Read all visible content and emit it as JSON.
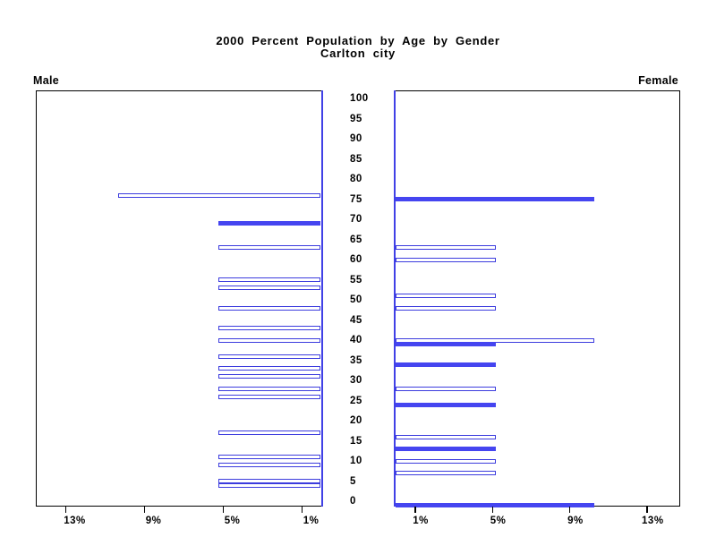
{
  "chart_data": {
    "type": "bar",
    "variant": "population-pyramid",
    "orientation": "horizontal",
    "title": "2000 Percent Population by Age by Gender",
    "subtitle": "Carlton city",
    "left_panel_label": "Male",
    "right_panel_label": "Female",
    "age_axis": {
      "range": [
        0,
        100
      ],
      "tick_step": 5,
      "ticks": [
        100,
        95,
        90,
        85,
        80,
        75,
        70,
        65,
        60,
        55,
        50,
        45,
        40,
        35,
        30,
        25,
        20,
        15,
        10,
        5,
        0
      ],
      "position": "center"
    },
    "percent_axis": {
      "max": 14.8,
      "ticks": [
        1,
        5,
        9,
        13
      ],
      "tick_labels": [
        "1%",
        "5%",
        "9%",
        "13%"
      ],
      "grid": false
    },
    "legend": "none",
    "series": [
      {
        "name": "Male",
        "side": "left",
        "bars": [
          {
            "age": 76,
            "percent": 10.3,
            "filled": false
          },
          {
            "age": 69,
            "percent": 5.2,
            "filled": true
          },
          {
            "age": 63,
            "percent": 5.2,
            "filled": false
          },
          {
            "age": 55,
            "percent": 5.2,
            "filled": false
          },
          {
            "age": 53,
            "percent": 5.2,
            "filled": false
          },
          {
            "age": 48,
            "percent": 5.2,
            "filled": false
          },
          {
            "age": 43,
            "percent": 5.2,
            "filled": false
          },
          {
            "age": 40,
            "percent": 5.2,
            "filled": false
          },
          {
            "age": 36,
            "percent": 5.2,
            "filled": false
          },
          {
            "age": 33,
            "percent": 5.2,
            "filled": false
          },
          {
            "age": 31,
            "percent": 5.2,
            "filled": false
          },
          {
            "age": 28,
            "percent": 5.2,
            "filled": false
          },
          {
            "age": 26,
            "percent": 5.2,
            "filled": false
          },
          {
            "age": 17,
            "percent": 5.2,
            "filled": false
          },
          {
            "age": 11,
            "percent": 5.2,
            "filled": false
          },
          {
            "age": 9,
            "percent": 5.2,
            "filled": false
          },
          {
            "age": 5,
            "percent": 5.2,
            "filled": false
          },
          {
            "age": 4,
            "percent": 5.2,
            "filled": false
          }
        ]
      },
      {
        "name": "Female",
        "side": "right",
        "bars": [
          {
            "age": 75,
            "percent": 10.3,
            "filled": true
          },
          {
            "age": 63,
            "percent": 5.2,
            "filled": false
          },
          {
            "age": 60,
            "percent": 5.2,
            "filled": false
          },
          {
            "age": 51,
            "percent": 5.2,
            "filled": false
          },
          {
            "age": 48,
            "percent": 5.2,
            "filled": false
          },
          {
            "age": 40,
            "percent": 10.3,
            "filled": false
          },
          {
            "age": 39,
            "percent": 5.2,
            "filled": true
          },
          {
            "age": 34,
            "percent": 5.2,
            "filled": true
          },
          {
            "age": 28,
            "percent": 5.2,
            "filled": false
          },
          {
            "age": 24,
            "percent": 5.2,
            "filled": true
          },
          {
            "age": 16,
            "percent": 5.2,
            "filled": false
          },
          {
            "age": 13,
            "percent": 5.2,
            "filled": true
          },
          {
            "age": 10,
            "percent": 5.2,
            "filled": false
          },
          {
            "age": 7,
            "percent": 5.2,
            "filled": false
          },
          {
            "age": 0,
            "percent": 10.3,
            "filled": true
          }
        ]
      }
    ],
    "colors": {
      "bar_fill": "#4545F0",
      "bar_outline": "#3C3CDE",
      "axis_line": "#4040E6",
      "frame": "#000000",
      "background": "#FFFFFF",
      "text": "#000000"
    }
  }
}
